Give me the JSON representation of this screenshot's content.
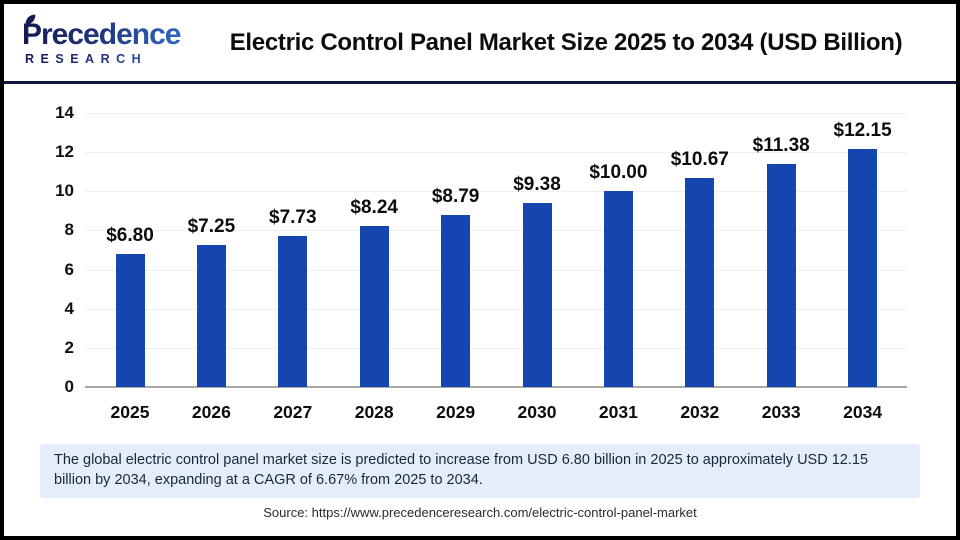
{
  "header": {
    "logo_line1": "Precedence",
    "logo_line2": "RESEARCH",
    "title": "Electric Control Panel Market Size 2025 to 2034 (USD Billion)"
  },
  "chart_data": {
    "type": "bar",
    "title": "Electric Control Panel Market Size 2025 to 2034 (USD Billion)",
    "categories": [
      "2025",
      "2026",
      "2027",
      "2028",
      "2029",
      "2030",
      "2031",
      "2032",
      "2033",
      "2034"
    ],
    "values": [
      6.8,
      7.25,
      7.73,
      8.24,
      8.79,
      9.38,
      10.0,
      10.67,
      11.38,
      12.15
    ],
    "value_labels": [
      "$6.80",
      "$7.25",
      "$7.73",
      "$8.24",
      "$8.79",
      "$9.38",
      "$10.00",
      "$10.67",
      "$11.38",
      "$12.15"
    ],
    "xlabel": "",
    "ylabel": "",
    "ylim": [
      0,
      14
    ],
    "yticks": [
      0,
      2,
      4,
      6,
      8,
      10,
      12,
      14
    ],
    "grid": true,
    "legend": "none",
    "bar_color": "#1546b0",
    "grid_color": "#efefef",
    "axis_color": "#a8a8a8"
  },
  "footer": {
    "note": "The global electric control panel market size is predicted to increase from USD 6.80 billion in 2025 to approximately USD 12.15 billion by 2034, expanding at a CAGR of 6.67% from 2025 to 2034.",
    "source": "Source: https://www.precedenceresearch.com/electric-control-panel-market"
  },
  "colors": {
    "divider_navy": "#10173f",
    "note_bg": "#e4eefa",
    "logo_navy": "#151b54",
    "logo_blue": "#2f6fd0"
  }
}
